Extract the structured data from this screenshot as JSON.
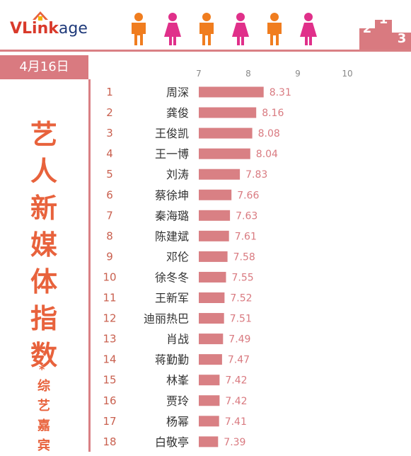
{
  "brand": {
    "logo_prefix": "VLink",
    "logo_suffix": "age"
  },
  "colors": {
    "bar": "#d98084",
    "accent": "#e8623c",
    "male": "#f07d1f",
    "female": "#e0308a",
    "podium": "#d97a80"
  },
  "header": {
    "people_icons": [
      "male-icon",
      "female-icon",
      "male-icon",
      "female-icon",
      "male-icon",
      "female-icon"
    ],
    "podium": [
      "2",
      "1",
      "3"
    ]
  },
  "date_badge": "4月16日",
  "side_title": [
    "艺",
    "人",
    "新",
    "媒",
    "体",
    "指",
    "数"
  ],
  "side_star": "*",
  "side_subtitle": [
    "综",
    "艺",
    "嘉",
    "宾"
  ],
  "chart_data": {
    "type": "bar",
    "orientation": "horizontal",
    "xlim": [
      7,
      10
    ],
    "ticks": [
      "7",
      "8",
      "9",
      "10"
    ],
    "grid": false,
    "legend": "none",
    "entries": [
      {
        "rank": "1",
        "name": "周深",
        "value": 8.31
      },
      {
        "rank": "2",
        "name": "龚俊",
        "value": 8.16
      },
      {
        "rank": "3",
        "name": "王俊凯",
        "value": 8.08
      },
      {
        "rank": "4",
        "name": "王一博",
        "value": 8.04
      },
      {
        "rank": "5",
        "name": "刘涛",
        "value": 7.83
      },
      {
        "rank": "6",
        "name": "蔡徐坤",
        "value": 7.66
      },
      {
        "rank": "7",
        "name": "秦海璐",
        "value": 7.63
      },
      {
        "rank": "8",
        "name": "陈建斌",
        "value": 7.61
      },
      {
        "rank": "9",
        "name": "邓伦",
        "value": 7.58
      },
      {
        "rank": "10",
        "name": "徐冬冬",
        "value": 7.55
      },
      {
        "rank": "11",
        "name": "王新军",
        "value": 7.52
      },
      {
        "rank": "12",
        "name": "迪丽热巴",
        "value": 7.51
      },
      {
        "rank": "13",
        "name": "肖战",
        "value": 7.49
      },
      {
        "rank": "14",
        "name": "蒋勤勤",
        "value": 7.47
      },
      {
        "rank": "15",
        "name": "林峯",
        "value": 7.42
      },
      {
        "rank": "16",
        "name": "贾玲",
        "value": 7.42
      },
      {
        "rank": "17",
        "name": "杨幂",
        "value": 7.41
      },
      {
        "rank": "18",
        "name": "白敬亭",
        "value": 7.39
      }
    ]
  }
}
